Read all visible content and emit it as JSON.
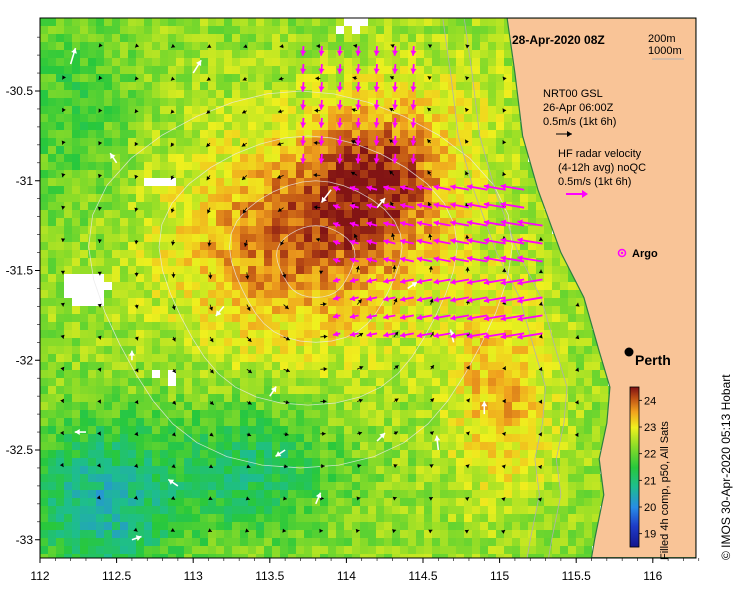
{
  "title": "28-Apr-2020 08Z",
  "depth_legend": {
    "contour_a": "200m",
    "contour_b": "1000m"
  },
  "axes": {
    "x_ticks": [
      "112",
      "112.5",
      "113",
      "113.5",
      "114",
      "114.5",
      "115",
      "115.5",
      "116"
    ],
    "y_ticks": [
      "-30.5",
      "-31",
      "-31.5",
      "-32",
      "-32.5",
      "-33"
    ],
    "lon_range": [
      112,
      116.3
    ],
    "lat_range": [
      -33.1,
      -30.1
    ]
  },
  "gsl_legend": {
    "line1": "NRT00 GSL",
    "line2": "26-Apr 06:00Z",
    "line3": "0.5m/s (1kt 6h)"
  },
  "hf_legend": {
    "line1": "HF radar velocity",
    "line2": "(4-12h avg) noQC",
    "line3": "0.5m/s (1kt 6h)"
  },
  "argo_label": "Argo",
  "city_label": "Perth",
  "colorbar": {
    "ticks": [
      "24",
      "23",
      "22",
      "21",
      "20",
      "19"
    ],
    "vmin": 18.5,
    "vmax": 24.5,
    "caption": "Filled 4h comp, p50, All Sats"
  },
  "credit": "© IMOS 30-Apr-2020 05:13 Hobart",
  "colors": {
    "land": "#f9c497",
    "hf_vector": "#ff00ff",
    "gsl_vector": "#000000",
    "float_vector": "#ffffff",
    "cloud": "#ffffff"
  }
}
